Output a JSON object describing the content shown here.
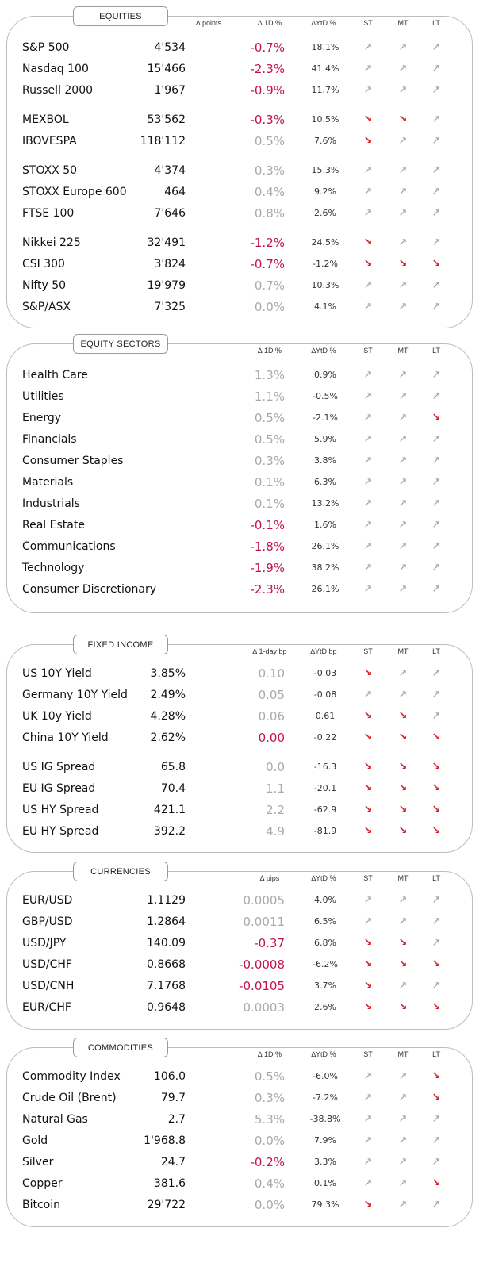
{
  "sections": [
    {
      "title": "EQUITIES",
      "headers": {
        "change": "∆ points",
        "change2": "∆ 1D %",
        "ytd": "∆YtD %",
        "st": "ST",
        "mt": "MT",
        "lt": "LT"
      },
      "rows": [
        {
          "name": "S&P 500",
          "value": "4'534",
          "change": "-0.7%",
          "change_dir": "neg",
          "ytd": "18.1%",
          "st": "up",
          "mt": "up",
          "lt": "up"
        },
        {
          "name": "Nasdaq 100",
          "value": "15'466",
          "change": "-2.3%",
          "change_dir": "neg",
          "ytd": "41.4%",
          "st": "up",
          "mt": "up",
          "lt": "up"
        },
        {
          "name": "Russell 2000",
          "value": "1'967",
          "change": "-0.9%",
          "change_dir": "neg",
          "ytd": "11.7%",
          "st": "up",
          "mt": "up",
          "lt": "up"
        },
        {
          "name": "MEXBOL",
          "value": "53'562",
          "change": "-0.3%",
          "change_dir": "neg",
          "ytd": "10.5%",
          "st": "down",
          "mt": "down",
          "lt": "up"
        },
        {
          "name": "IBOVESPA",
          "value": "118'112",
          "change": "0.5%",
          "change_dir": "pos",
          "ytd": "7.6%",
          "st": "down",
          "mt": "up",
          "lt": "up"
        },
        {
          "name": "STOXX 50",
          "value": "4'374",
          "change": "0.3%",
          "change_dir": "pos",
          "ytd": "15.3%",
          "st": "up",
          "mt": "up",
          "lt": "up"
        },
        {
          "name": "STOXX Europe 600",
          "value": "464",
          "change": "0.4%",
          "change_dir": "pos",
          "ytd": "9.2%",
          "st": "up",
          "mt": "up",
          "lt": "up"
        },
        {
          "name": "FTSE 100",
          "value": "7'646",
          "change": "0.8%",
          "change_dir": "pos",
          "ytd": "2.6%",
          "st": "up",
          "mt": "up",
          "lt": "up"
        },
        {
          "name": "Nikkei 225",
          "value": "32'491",
          "change": "-1.2%",
          "change_dir": "neg",
          "ytd": "24.5%",
          "st": "down",
          "mt": "up",
          "lt": "up"
        },
        {
          "name": "CSI 300",
          "value": "3'824",
          "change": "-0.7%",
          "change_dir": "neg",
          "ytd": "-1.2%",
          "st": "down",
          "mt": "down",
          "lt": "down"
        },
        {
          "name": "Nifty  50",
          "value": "19'979",
          "change": "0.7%",
          "change_dir": "pos",
          "ytd": "10.3%",
          "st": "up",
          "mt": "up",
          "lt": "up"
        },
        {
          "name": "S&P/ASX",
          "value": "7'325",
          "change": "0.0%",
          "change_dir": "pos",
          "ytd": "4.1%",
          "st": "up",
          "mt": "up",
          "lt": "up"
        }
      ]
    },
    {
      "title": "EQUITY  SECTORS",
      "headers": {
        "change2": "∆ 1D %",
        "ytd": "∆YtD %",
        "st": "ST",
        "mt": "MT",
        "lt": "LT"
      },
      "rows": [
        {
          "name": "Health Care",
          "value": "",
          "change": "1.3%",
          "change_dir": "pos",
          "ytd": "0.9%",
          "st": "up",
          "mt": "up",
          "lt": "up"
        },
        {
          "name": "Utilities",
          "value": "",
          "change": "1.1%",
          "change_dir": "pos",
          "ytd": "-0.5%",
          "st": "up",
          "mt": "up",
          "lt": "up"
        },
        {
          "name": "Energy",
          "value": "",
          "change": "0.5%",
          "change_dir": "pos",
          "ytd": "-2.1%",
          "st": "up",
          "mt": "up",
          "lt": "down"
        },
        {
          "name": "Financials",
          "value": "",
          "change": "0.5%",
          "change_dir": "pos",
          "ytd": "5.9%",
          "st": "up",
          "mt": "up",
          "lt": "up"
        },
        {
          "name": "Consumer Staples",
          "value": "",
          "change": "0.3%",
          "change_dir": "pos",
          "ytd": "3.8%",
          "st": "up",
          "mt": "up",
          "lt": "up"
        },
        {
          "name": "Materials",
          "value": "",
          "change": "0.1%",
          "change_dir": "pos",
          "ytd": "6.3%",
          "st": "up",
          "mt": "up",
          "lt": "up"
        },
        {
          "name": "Industrials",
          "value": "",
          "change": "0.1%",
          "change_dir": "pos",
          "ytd": "13.2%",
          "st": "up",
          "mt": "up",
          "lt": "up"
        },
        {
          "name": "Real Estate",
          "value": "",
          "change": "-0.1%",
          "change_dir": "neg",
          "ytd": "1.6%",
          "st": "up",
          "mt": "up",
          "lt": "up"
        },
        {
          "name": "Communications",
          "value": "",
          "change": "-1.8%",
          "change_dir": "neg",
          "ytd": "26.1%",
          "st": "up",
          "mt": "up",
          "lt": "up"
        },
        {
          "name": "Technology",
          "value": "",
          "change": "-1.9%",
          "change_dir": "neg",
          "ytd": "38.2%",
          "st": "up",
          "mt": "up",
          "lt": "up"
        },
        {
          "name": "Consumer Discretionary",
          "value": "",
          "change": "-2.3%",
          "change_dir": "neg",
          "ytd": "26.1%",
          "st": "up",
          "mt": "up",
          "lt": "up"
        }
      ]
    },
    {
      "title": "FIXED  INCOME",
      "headers": {
        "change2": "∆ 1-day bp",
        "ytd": "∆YtD bp",
        "st": "ST",
        "mt": "MT",
        "lt": "LT"
      },
      "rows": [
        {
          "name": "US 10Y Yield",
          "value": "3.85%",
          "change": "0.10",
          "change_dir": "pos",
          "ytd": "-0.03",
          "st": "down",
          "mt": "up",
          "lt": "up"
        },
        {
          "name": "Germany 10Y Yield",
          "value": "2.49%",
          "change": "0.05",
          "change_dir": "pos",
          "ytd": "-0.08",
          "st": "up",
          "mt": "up",
          "lt": "up"
        },
        {
          "name": "UK 10y Yield",
          "value": "4.28%",
          "change": "0.06",
          "change_dir": "pos",
          "ytd": "0.61",
          "st": "down",
          "mt": "down",
          "lt": "up"
        },
        {
          "name": "China 10Y Yield",
          "value": "2.62%",
          "change": "0.00",
          "change_dir": "neg",
          "ytd": "-0.22",
          "st": "down",
          "mt": "down",
          "lt": "down"
        },
        {
          "name": "US IG Spread",
          "value": "65.8",
          "change": "0.0",
          "change_dir": "pos",
          "ytd": "-16.3",
          "st": "down",
          "mt": "down",
          "lt": "down"
        },
        {
          "name": "EU IG Spread",
          "value": "70.4",
          "change": "1.1",
          "change_dir": "pos",
          "ytd": "-20.1",
          "st": "down",
          "mt": "down",
          "lt": "down"
        },
        {
          "name": "US HY Spread",
          "value": "421.1",
          "change": "2.2",
          "change_dir": "pos",
          "ytd": "-62.9",
          "st": "down",
          "mt": "down",
          "lt": "down"
        },
        {
          "name": "EU HY Spread",
          "value": "392.2",
          "change": "4.9",
          "change_dir": "pos",
          "ytd": "-81.9",
          "st": "down",
          "mt": "down",
          "lt": "down"
        }
      ]
    },
    {
      "title": "CURRENCIES",
      "headers": {
        "change2": "∆ pips",
        "ytd": "∆YtD %",
        "st": "ST",
        "mt": "MT",
        "lt": "LT"
      },
      "rows": [
        {
          "name": "EUR/USD",
          "value": "1.1129",
          "change": "0.0005",
          "change_dir": "pos",
          "ytd": "4.0%",
          "st": "up",
          "mt": "up",
          "lt": "up"
        },
        {
          "name": "GBP/USD",
          "value": "1.2864",
          "change": "0.0011",
          "change_dir": "pos",
          "ytd": "6.5%",
          "st": "up",
          "mt": "up",
          "lt": "up"
        },
        {
          "name": "USD/JPY",
          "value": "140.09",
          "change": "-0.37",
          "change_dir": "neg",
          "ytd": "6.8%",
          "st": "down",
          "mt": "down",
          "lt": "up"
        },
        {
          "name": "USD/CHF",
          "value": "0.8668",
          "change": "-0.0008",
          "change_dir": "neg",
          "ytd": "-6.2%",
          "st": "down",
          "mt": "down",
          "lt": "down"
        },
        {
          "name": "USD/CNH",
          "value": "7.1768",
          "change": "-0.0105",
          "change_dir": "neg",
          "ytd": "3.7%",
          "st": "down",
          "mt": "up",
          "lt": "up"
        },
        {
          "name": "EUR/CHF",
          "value": "0.9648",
          "change": "0.0003",
          "change_dir": "pos",
          "ytd": "2.6%",
          "st": "down",
          "mt": "down",
          "lt": "down"
        }
      ]
    },
    {
      "title": "COMMODITIES",
      "headers": {
        "change2": "∆ 1D %",
        "ytd": "∆YtD %",
        "st": "ST",
        "mt": "MT",
        "lt": "LT"
      },
      "rows": [
        {
          "name": "Commodity Index",
          "value": "106.0",
          "change": "0.5%",
          "change_dir": "pos",
          "ytd": "-6.0%",
          "st": "up",
          "mt": "up",
          "lt": "down"
        },
        {
          "name": "Crude Oil (Brent)",
          "value": "79.7",
          "change": "0.3%",
          "change_dir": "pos",
          "ytd": "-7.2%",
          "st": "up",
          "mt": "up",
          "lt": "down"
        },
        {
          "name": "Natural Gas",
          "value": "2.7",
          "change": "5.3%",
          "change_dir": "pos",
          "ytd": "-38.8%",
          "st": "up",
          "mt": "up",
          "lt": "up"
        },
        {
          "name": "Gold",
          "value": "1'968.8",
          "change": "0.0%",
          "change_dir": "pos",
          "ytd": "7.9%",
          "st": "up",
          "mt": "up",
          "lt": "up"
        },
        {
          "name": "Silver",
          "value": "24.7",
          "change": "-0.2%",
          "change_dir": "neg",
          "ytd": "3.3%",
          "st": "up",
          "mt": "up",
          "lt": "up"
        },
        {
          "name": "Copper",
          "value": "381.6",
          "change": "0.4%",
          "change_dir": "pos",
          "ytd": "0.1%",
          "st": "up",
          "mt": "up",
          "lt": "down"
        },
        {
          "name": "Bitcoin",
          "value": "29'722",
          "change": "0.0%",
          "change_dir": "pos",
          "ytd": "79.3%",
          "st": "down",
          "mt": "up",
          "lt": "up"
        }
      ]
    }
  ],
  "icons": {
    "up": "arrow-up-right-icon",
    "down": "arrow-down-right-icon"
  },
  "colors": {
    "negative": "#c4124a",
    "neutral": "#a9a9a9",
    "down_arrow": "#d11d25",
    "up_arrow": "#9a9a9a"
  }
}
